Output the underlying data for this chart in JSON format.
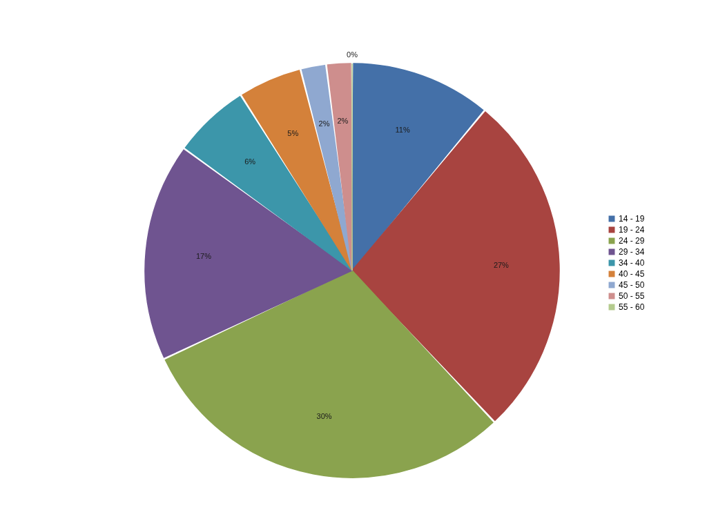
{
  "chart_data": {
    "type": "pie",
    "categories": [
      "14 - 19",
      "19 - 24",
      "24 - 29",
      "29 - 34",
      "34 - 40",
      "40 - 45",
      "45 - 50",
      "50 - 55",
      "55 - 60"
    ],
    "values": [
      11,
      27,
      30,
      17,
      6,
      5,
      2,
      2,
      0
    ],
    "colors": [
      "#4470a8",
      "#a84440",
      "#8aa34e",
      "#6f5490",
      "#3c96aa",
      "#d4813a",
      "#8fa8d0",
      "#ce8e8d",
      "#b4cb8e"
    ],
    "value_labels": [
      "11%",
      "27%",
      "30%",
      "17%",
      "6%",
      "5%",
      "2%",
      "2%",
      "0%"
    ],
    "legend": "right"
  }
}
